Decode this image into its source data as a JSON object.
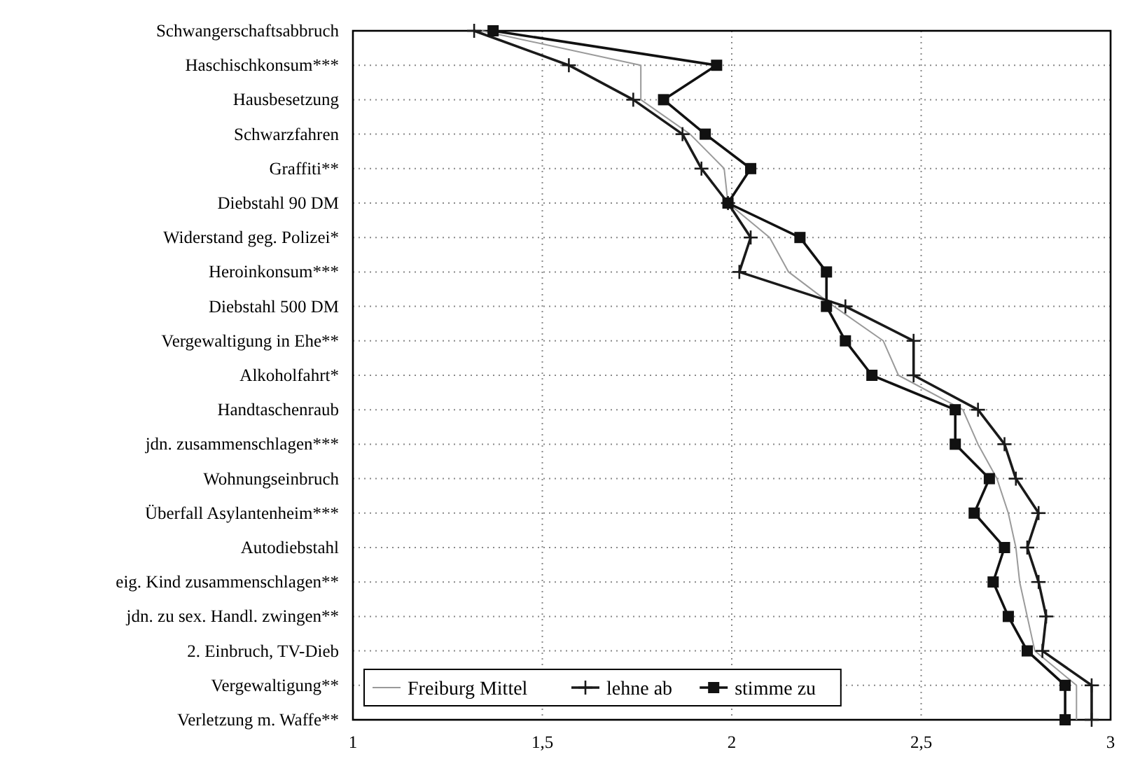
{
  "chart_data": {
    "type": "line",
    "orientation": "horizontal",
    "categories": [
      "Schwangerschaftsabbruch",
      "Haschischkonsum***",
      "Hausbesetzung",
      "Schwarzfahren",
      "Graffiti**",
      "Diebstahl 90 DM",
      "Widerstand geg. Polizei*",
      "Heroinkonsum***",
      "Diebstahl 500 DM",
      "Vergewaltigung in Ehe**",
      "Alkoholfahrt*",
      "Handtaschenraub",
      "jdn. zusammenschlagen***",
      "Wohnungseinbruch",
      "Überfall Asylantenheim***",
      "Autodiebstahl",
      "eig. Kind zusammenschlagen**",
      "jdn. zu sex. Handl. zwingen**",
      "2. Einbruch, TV-Dieb",
      "Vergewaltigung**",
      "Verletzung m. Waffe**"
    ],
    "series": [
      {
        "name": "Freiburg Mittel",
        "color": "#9a9a9a",
        "marker": "none",
        "values": [
          1.34,
          1.76,
          1.76,
          1.89,
          1.98,
          1.99,
          2.1,
          2.15,
          2.27,
          2.4,
          2.44,
          2.61,
          2.65,
          2.7,
          2.73,
          2.75,
          2.76,
          2.78,
          2.8,
          2.91,
          2.91
        ]
      },
      {
        "name": "lehne ab",
        "color": "#1a1a1a",
        "marker": "cross",
        "values": [
          1.32,
          1.57,
          1.74,
          1.87,
          1.92,
          1.99,
          2.05,
          2.02,
          2.3,
          2.48,
          2.48,
          2.65,
          2.72,
          2.75,
          2.81,
          2.78,
          2.81,
          2.83,
          2.82,
          2.95,
          2.95
        ]
      },
      {
        "name": "stimme zu",
        "color": "#111111",
        "marker": "square",
        "values": [
          1.37,
          1.96,
          1.82,
          1.93,
          2.05,
          1.99,
          2.18,
          2.25,
          2.25,
          2.3,
          2.37,
          2.59,
          2.59,
          2.68,
          2.64,
          2.72,
          2.69,
          2.73,
          2.78,
          2.88,
          2.88
        ]
      }
    ],
    "xlim": [
      1,
      3
    ],
    "xticks": [
      1,
      {
        "value": 1.5,
        "label": "1,5"
      },
      2,
      {
        "value": 2.5,
        "label": "2,5"
      },
      3
    ],
    "grid": true,
    "legend": "bottom"
  }
}
